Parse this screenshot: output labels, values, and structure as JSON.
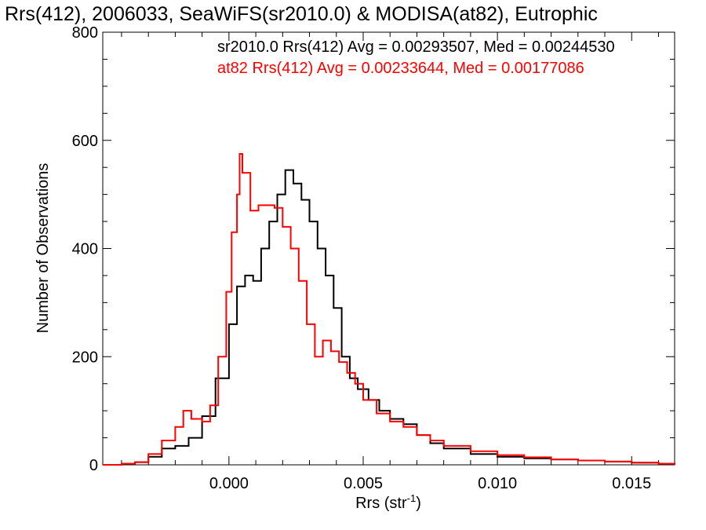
{
  "chart_data": {
    "type": "line",
    "title": "Rrs(412), 2006033, SeaWiFS(sr2010.0) & MODISA(at82), Eutrophic",
    "xlabel": "Rrs (str",
    "xlabel_sup": "-1",
    "xlabel_close": ")",
    "ylabel": "Number of Observations",
    "xlim": [
      -0.0047,
      0.0166
    ],
    "ylim": [
      0,
      800
    ],
    "x_ticks": [
      0.0,
      0.005,
      0.01,
      0.015
    ],
    "x_tick_labels": [
      "0.000",
      "0.005",
      "0.010",
      "0.015"
    ],
    "y_ticks": [
      0,
      200,
      400,
      600,
      800
    ],
    "y_tick_labels": [
      "0",
      "200",
      "400",
      "600",
      "800"
    ],
    "stats": [
      {
        "text": "sr2010.0 Rrs(412) Avg = 0.00293507, Med = 0.00244530",
        "color": "#000000"
      },
      {
        "text": "at82 Rrs(412) Avg = 0.00233644, Med = 0.00177086",
        "color": "#ff0000"
      }
    ],
    "series": [
      {
        "color": "#000000",
        "x": [
          -0.0047,
          -0.004,
          -0.0035,
          -0.003,
          -0.0025,
          -0.002,
          -0.0015,
          -0.001,
          -0.0005,
          0.0,
          0.0003,
          0.0006,
          0.0009,
          0.0012,
          0.0015,
          0.0018,
          0.0021,
          0.0024,
          0.0027,
          0.003,
          0.0033,
          0.0036,
          0.0039,
          0.0042,
          0.0045,
          0.0048,
          0.0052,
          0.0056,
          0.006,
          0.0065,
          0.007,
          0.0075,
          0.008,
          0.009,
          0.01,
          0.011,
          0.012,
          0.013,
          0.014,
          0.015,
          0.016,
          0.0166
        ],
        "y": [
          0,
          2,
          5,
          15,
          30,
          35,
          50,
          90,
          160,
          260,
          330,
          350,
          340,
          400,
          450,
          500,
          545,
          520,
          490,
          450,
          400,
          350,
          290,
          200,
          160,
          140,
          120,
          100,
          85,
          75,
          55,
          40,
          30,
          20,
          15,
          12,
          10,
          8,
          6,
          4,
          2,
          0
        ]
      },
      {
        "color": "#ff0000",
        "x": [
          -0.0047,
          -0.004,
          -0.0035,
          -0.003,
          -0.0025,
          -0.002,
          -0.0017,
          -0.0014,
          -0.001,
          -0.0007,
          -0.0004,
          -0.0001,
          0.0001,
          0.0003,
          0.0004,
          0.0005,
          0.0008,
          0.0011,
          0.0014,
          0.0017,
          0.002,
          0.0023,
          0.0026,
          0.0029,
          0.0032,
          0.0035,
          0.0038,
          0.0041,
          0.0044,
          0.0047,
          0.005,
          0.0055,
          0.006,
          0.0065,
          0.007,
          0.0075,
          0.008,
          0.009,
          0.01,
          0.011,
          0.012,
          0.013,
          0.014,
          0.015,
          0.016,
          0.0166
        ],
        "y": [
          0,
          2,
          5,
          20,
          45,
          70,
          100,
          85,
          80,
          110,
          200,
          320,
          430,
          500,
          575,
          540,
          470,
          480,
          480,
          475,
          440,
          400,
          340,
          260,
          200,
          230,
          210,
          190,
          170,
          150,
          120,
          95,
          80,
          70,
          55,
          45,
          35,
          25,
          18,
          14,
          10,
          8,
          6,
          4,
          2,
          0
        ]
      }
    ]
  }
}
